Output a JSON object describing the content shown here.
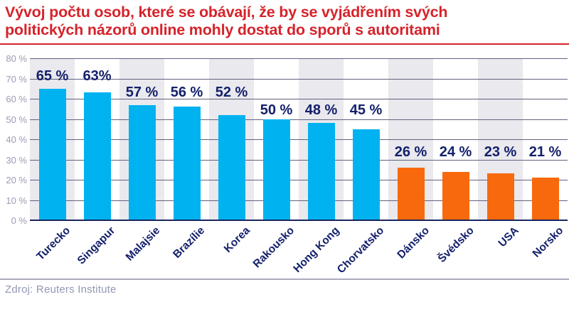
{
  "title": {
    "line1": "Vývoj počtu osob, které se obávají, že by se vyjádřením svých",
    "line2": "politických názorů online mohly dostat do sporů s autoritami"
  },
  "source": "Zdroj: Reuters Institute",
  "colors": {
    "title_red": "#D5232B",
    "bar_cyan": "#00B2F0",
    "bar_orange": "#F8690D",
    "label_navy": "#14206B",
    "gridline": "#62627F",
    "baseline": "#1B2560",
    "stripe_gray": "#E9E9EE",
    "ytick_gray": "#9B9BB4",
    "source_gray": "#9298B2",
    "divider_gray": "#ABABBD",
    "background": "#FFFFFF"
  },
  "chart_data": {
    "type": "bar",
    "title": "Vývoj počtu osob, které se obávají, že by se vyjádřením svých politických názorů online mohly dostat do sporů s autoritami",
    "categories": [
      "Turecko",
      "Singapur",
      "Malajsie",
      "Brazílie",
      "Korea",
      "Rakousko",
      "Hong Kong",
      "Chorvatsko",
      "Dánsko",
      "Švédsko",
      "USA",
      "Norsko"
    ],
    "values": [
      65,
      63,
      57,
      56,
      52,
      50,
      48,
      45,
      26,
      24,
      23,
      21
    ],
    "value_labels": [
      "65 %",
      "63%",
      "57 %",
      "56 %",
      "52 %",
      "50 %",
      "48 %",
      "45 %",
      "26 %",
      "24 %",
      "23 %",
      "21 %"
    ],
    "bar_colors": [
      "#00B2F0",
      "#00B2F0",
      "#00B2F0",
      "#00B2F0",
      "#00B2F0",
      "#00B2F0",
      "#00B2F0",
      "#00B2F0",
      "#F8690D",
      "#F8690D",
      "#F8690D",
      "#F8690D"
    ],
    "y_ticks": [
      "0 %",
      "10 %",
      "20 %",
      "30 %",
      "40 %",
      "50 %",
      "60 %",
      "70 %",
      "80 %"
    ],
    "xlabel": "",
    "ylabel": "",
    "ylim": [
      0,
      80
    ],
    "grid": true,
    "legend_position": "none",
    "striped_background_columns": "odd"
  }
}
